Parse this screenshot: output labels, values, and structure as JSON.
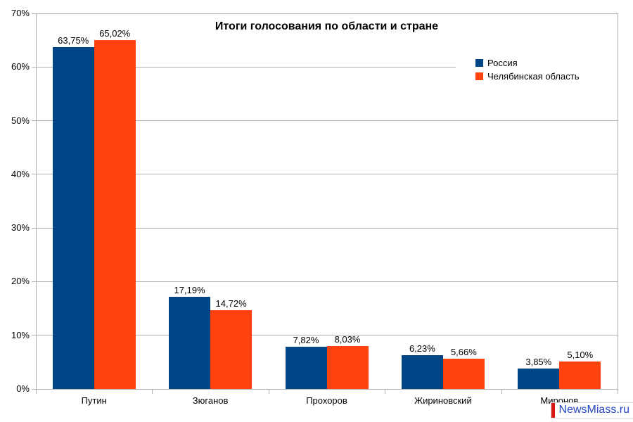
{
  "chart_data": {
    "type": "bar",
    "title": "Итоги голосования по области и стране",
    "categories": [
      "Путин",
      "Зюганов",
      "Прохоров",
      "Жириновский",
      "Миронов"
    ],
    "series": [
      {
        "name": "Россия",
        "color": "#004586",
        "values": [
          63.75,
          17.19,
          7.82,
          6.23,
          3.85
        ],
        "labels": [
          "63,75%",
          "17,19%",
          "7,82%",
          "6,23%",
          "3,85%"
        ]
      },
      {
        "name": "Челябинская область",
        "color": "#ff420e",
        "values": [
          65.02,
          14.72,
          8.03,
          5.66,
          5.1
        ],
        "labels": [
          "65,02%",
          "14,72%",
          "8,03%",
          "5,66%",
          "5,10%"
        ]
      }
    ],
    "xlabel": "",
    "ylabel": "",
    "ylim": [
      0,
      70
    ],
    "ytick_step": 10,
    "ytick_labels": [
      "0%",
      "10%",
      "20%",
      "30%",
      "40%",
      "50%",
      "60%",
      "70%"
    ],
    "grid": true,
    "legend_position": "top-right"
  },
  "colors": {
    "grid": "#b0b0b0",
    "axis": "#b0b0b0",
    "background": "#ffffff",
    "text": "#000000"
  },
  "watermark": {
    "text": "NewsMiass.ru",
    "text_color": "#2547c5",
    "bar_color": "#dd1512"
  }
}
